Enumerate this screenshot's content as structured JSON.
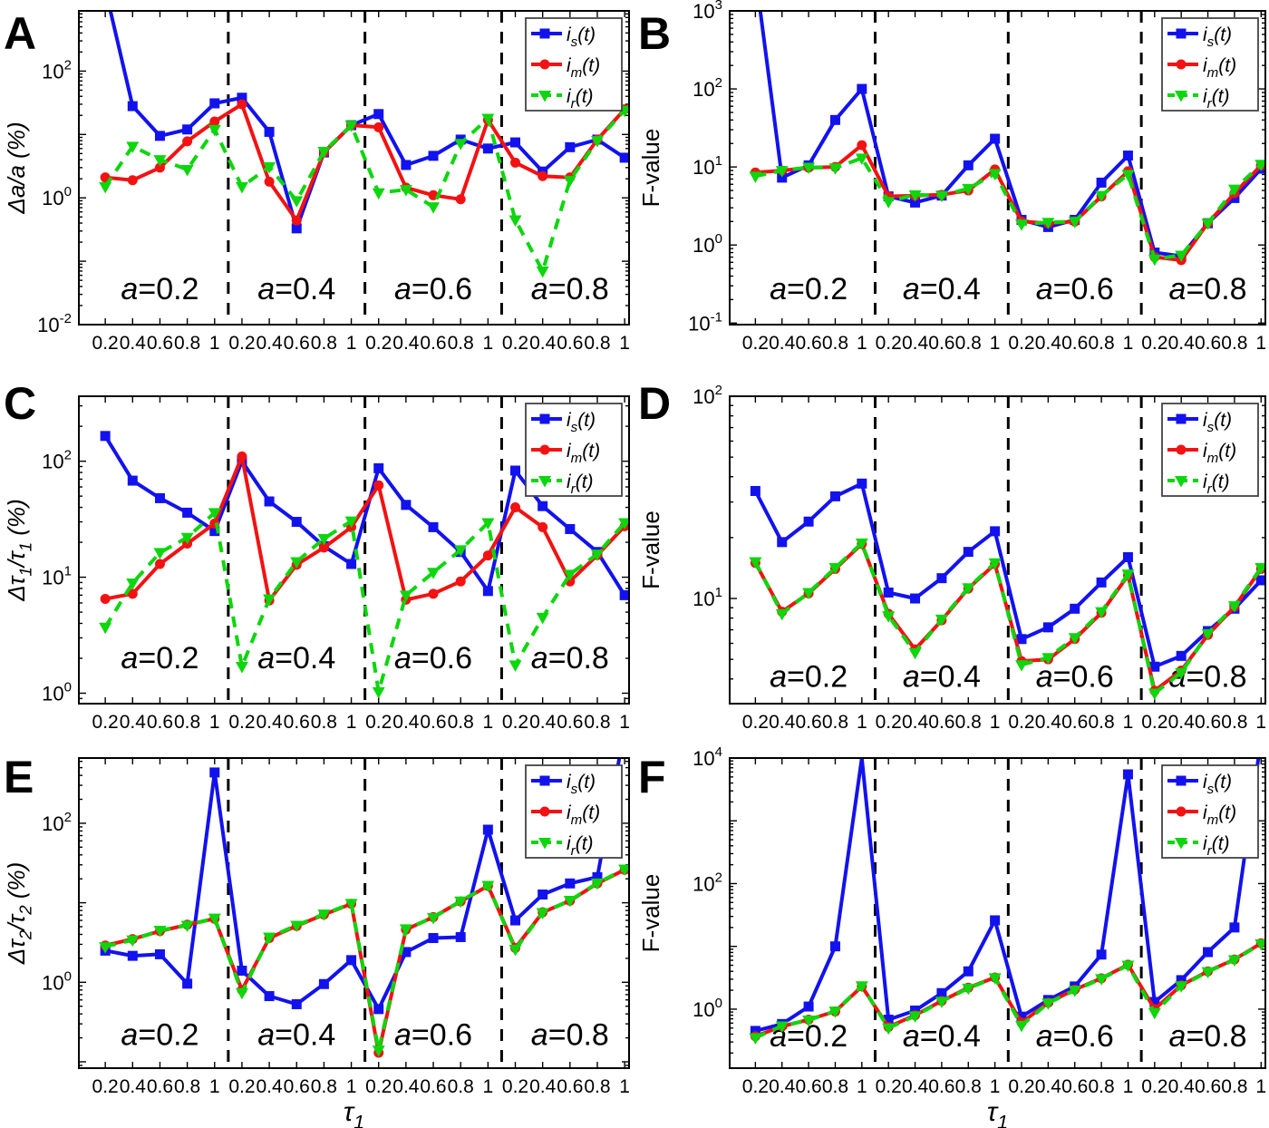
{
  "figure": {
    "xlabel": "τ_1",
    "x_values_per_section": [
      0.2,
      0.4,
      0.6,
      0.8,
      1
    ],
    "x_tick_labels": [
      "0.2",
      "0.4",
      "0.6",
      "0.8",
      "1"
    ],
    "sections": [
      "a=0.2",
      "a=0.4",
      "a=0.6",
      "a=0.8"
    ],
    "legend_position": "top-right",
    "grid": "off",
    "series_styles": {
      "is": {
        "label": "i_s(t)",
        "color": "#1212ef",
        "marker": "square",
        "line": "solid"
      },
      "im": {
        "label": "i_m(t)",
        "color": "#f21212",
        "marker": "circle",
        "line": "solid"
      },
      "ir": {
        "label": "i_r(t)",
        "color": "#0cd60c",
        "marker": "triangle-down",
        "line": "dashed"
      }
    },
    "divider_style": "black-dashed",
    "axis_color": "#000000"
  },
  "chart_data": [
    {
      "panel": "A",
      "type": "line",
      "yscale": "log",
      "ylabel": "Δa/a (%)",
      "ylabel_italic": true,
      "ytick_exponents": [
        2,
        0,
        -2
      ],
      "ylim_exp": [
        -2.0,
        2.95
      ],
      "label_frac": 0.885,
      "has_xlabel": false,
      "series": [
        {
          "key": "is",
          "name": "i_s(t)",
          "values": [
            2000,
            28,
            9.5,
            12,
            31,
            38,
            11,
            0.33,
            5.2,
            14,
            21,
            3.3,
            4.6,
            8.3,
            6.0,
            7.5,
            2.6,
            6.3,
            8.3,
            4.3
          ]
        },
        {
          "key": "im",
          "name": "i_m(t)",
          "values": [
            2.1,
            1.9,
            3.0,
            7.8,
            16,
            30,
            1.8,
            0.44,
            5.2,
            14,
            13,
            1.45,
            1.1,
            0.95,
            17,
            3.6,
            2.2,
            2.1,
            8.3,
            25
          ]
        },
        {
          "key": "ir",
          "name": "i_r(t)",
          "values": [
            1.5,
            6.5,
            4.0,
            2.8,
            12,
            1.5,
            3.1,
            0.9,
            5.4,
            14,
            1.2,
            1.35,
            0.72,
            7.2,
            18,
            0.45,
            0.07,
            1.9,
            8.0,
            24
          ]
        }
      ]
    },
    {
      "panel": "B",
      "type": "line",
      "yscale": "log",
      "ylabel": "F-value",
      "ylabel_italic": false,
      "ytick_exponents": [
        3,
        2,
        1,
        0,
        -1
      ],
      "ylim_exp": [
        -1.02,
        3.0
      ],
      "label_frac": 0.885,
      "has_xlabel": false,
      "series": [
        {
          "key": "is",
          "name": "i_s(t)",
          "values": [
            3000,
            7.3,
            10.5,
            40,
            100,
            4.2,
            3.5,
            4.3,
            10.5,
            23,
            2.1,
            1.7,
            2.1,
            6.3,
            14,
            0.8,
            0.72,
            1.9,
            4.0,
            9.5
          ]
        },
        {
          "key": "im",
          "name": "i_m(t)",
          "values": [
            8.5,
            9.0,
            9.8,
            10,
            19,
            4.2,
            4.3,
            4.4,
            5.0,
            9.3,
            2.0,
            1.9,
            2.0,
            4.2,
            8.8,
            0.7,
            0.64,
            1.9,
            4.6,
            10.5
          ]
        },
        {
          "key": "ir",
          "name": "i_r(t)",
          "values": [
            7.6,
            9.0,
            9.9,
            9.7,
            13,
            3.6,
            4.4,
            4.3,
            5.3,
            8.2,
            1.85,
            1.95,
            2.0,
            4.3,
            8.0,
            0.66,
            0.74,
            1.9,
            5.2,
            10.8
          ]
        }
      ]
    },
    {
      "panel": "C",
      "type": "line",
      "yscale": "log",
      "ylabel": "Δτ_1/τ_1 (%)",
      "ylabel_italic": true,
      "ytick_exponents": [
        2,
        1,
        0
      ],
      "ylim_exp": [
        -0.09,
        2.56
      ],
      "label_frac": 0.85,
      "has_xlabel": false,
      "series": [
        {
          "key": "is",
          "name": "i_s(t)",
          "values": [
            165,
            68,
            48,
            36,
            25,
            100,
            45,
            30,
            18.5,
            13,
            87,
            42,
            27,
            16.5,
            7.6,
            83,
            41,
            26,
            16.5,
            7.0
          ]
        },
        {
          "key": "im",
          "name": "i_m(t)",
          "values": [
            6.5,
            7.2,
            13,
            19.5,
            29,
            110,
            6.3,
            12.8,
            18,
            27,
            62,
            6.4,
            7.2,
            9.2,
            15.4,
            40,
            27,
            9.2,
            15.5,
            27.5
          ]
        },
        {
          "key": "ir",
          "name": "i_r(t)",
          "values": [
            3.7,
            8.9,
            16.3,
            22,
            36,
            1.7,
            6.5,
            13.6,
            21.5,
            30.5,
            1.03,
            7.0,
            11,
            17.2,
            29.5,
            1.75,
            4.5,
            10.6,
            15.8,
            29.5
          ]
        }
      ]
    },
    {
      "panel": "D",
      "type": "line",
      "yscale": "log",
      "ylabel": "F-value",
      "ylabel_italic": false,
      "ytick_exponents": [
        2,
        1
      ],
      "ylim_exp": [
        0.48,
        2.0
      ],
      "label_frac": 0.91,
      "has_xlabel": false,
      "series": [
        {
          "key": "is",
          "name": "i_s(t)",
          "values": [
            34,
            19,
            24,
            32,
            37,
            10.7,
            10,
            12.6,
            17,
            21.5,
            6.3,
            7.2,
            8.9,
            12,
            16,
            4.6,
            5.2,
            6.9,
            8.9,
            12.3
          ]
        },
        {
          "key": "im",
          "name": "i_m(t)",
          "values": [
            15,
            8.6,
            10.6,
            14,
            18.6,
            8.4,
            5.6,
            7.8,
            11.2,
            14.8,
            4.9,
            5.0,
            6.3,
            8.5,
            13,
            3.5,
            4.4,
            6.6,
            9.1,
            14
          ]
        },
        {
          "key": "ir",
          "name": "i_r(t)",
          "values": [
            15.2,
            8.4,
            10.7,
            14.2,
            18.8,
            8.2,
            5.4,
            7.9,
            11.3,
            15,
            4.7,
            5.1,
            6.4,
            8.6,
            13.2,
            3.4,
            4.3,
            6.7,
            9.2,
            14.2
          ]
        }
      ]
    },
    {
      "panel": "E",
      "type": "line",
      "yscale": "log",
      "ylabel": "Δτ_2/τ_2 (%)",
      "ylabel_italic": true,
      "ytick_exponents": [
        2,
        0
      ],
      "ylim_exp": [
        -1.08,
        2.82
      ],
      "label_frac": 0.89,
      "has_xlabel": true,
      "series": [
        {
          "key": "is",
          "name": "i_s(t)",
          "values": [
            2.5,
            2.15,
            2.25,
            0.96,
            435,
            1.4,
            0.67,
            0.53,
            0.95,
            1.9,
            0.46,
            2.4,
            3.6,
            3.7,
            83,
            6.0,
            12.7,
            17.5,
            21,
            1500
          ]
        },
        {
          "key": "im",
          "name": "i_m(t)",
          "values": [
            2.9,
            3.5,
            4.4,
            5.3,
            6.3,
            0.8,
            3.6,
            5.1,
            7.1,
            9.7,
            0.13,
            4.6,
            6.6,
            10.4,
            16.3,
            2.7,
            7.6,
            10.6,
            17.5,
            26
          ]
        },
        {
          "key": "ir",
          "name": "i_r(t)",
          "values": [
            2.8,
            3.4,
            4.5,
            5.2,
            6.4,
            0.74,
            3.7,
            5.2,
            7.2,
            9.8,
            0.14,
            4.7,
            6.5,
            10.5,
            16.5,
            2.6,
            7.5,
            10.7,
            17.7,
            26.5
          ]
        }
      ]
    },
    {
      "panel": "F",
      "type": "line",
      "yscale": "log",
      "ylabel": "F-value",
      "ylabel_italic": false,
      "ytick_exponents": [
        4,
        2,
        0
      ],
      "ylim_exp": [
        -0.94,
        4.0
      ],
      "label_frac": 0.895,
      "has_xlabel": true,
      "series": [
        {
          "key": "is",
          "name": "i_s(t)",
          "values": [
            0.45,
            0.58,
            1.1,
            10,
            10000,
            0.68,
            0.95,
            1.8,
            4.0,
            26,
            0.76,
            1.4,
            2.3,
            7.4,
            5500,
            1.3,
            2.9,
            8.1,
            20,
            20000
          ]
        },
        {
          "key": "im",
          "name": "i_m(t)",
          "values": [
            0.37,
            0.53,
            0.68,
            0.92,
            2.3,
            0.52,
            0.8,
            1.35,
            2.2,
            3.2,
            0.61,
            1.27,
            2.05,
            3.1,
            5.1,
            1.0,
            2.4,
            4.0,
            6.2,
            11.2
          ]
        },
        {
          "key": "ir",
          "name": "i_r(t)",
          "values": [
            0.35,
            0.54,
            0.67,
            0.93,
            2.35,
            0.5,
            0.78,
            1.33,
            2.15,
            3.15,
            0.55,
            1.25,
            2.0,
            3.05,
            5.0,
            0.88,
            2.35,
            3.95,
            6.1,
            11.0
          ]
        }
      ]
    }
  ]
}
